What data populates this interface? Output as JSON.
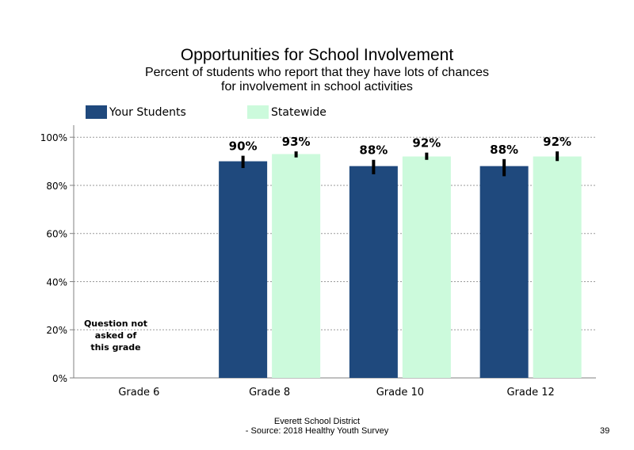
{
  "chart_data": {
    "type": "bar",
    "title": "Opportunities  for School Involvement",
    "subtitle": [
      "Percent of students  who report that they have lots of chances",
      "for involvement  in school activities"
    ],
    "categories": [
      "Grade 6",
      "Grade 8",
      "Grade 10",
      "Grade 12"
    ],
    "series": [
      {
        "name": "Your Students",
        "color": "#1f497d",
        "values": [
          null,
          90,
          88,
          88
        ],
        "labels": [
          "",
          "90%",
          "88%",
          "88%"
        ],
        "error": [
          null,
          [
            87.2,
            92.3
          ],
          [
            84.6,
            90.6
          ],
          [
            83.8,
            90.9
          ]
        ]
      },
      {
        "name": "Statewide",
        "color": "#ccfadc",
        "values": [
          null,
          93,
          92,
          92
        ],
        "labels": [
          "",
          "93%",
          "92%",
          "92%"
        ],
        "error": [
          null,
          [
            91.6,
            94.1
          ],
          [
            90.6,
            93.6
          ],
          [
            90.1,
            94.1
          ]
        ]
      }
    ],
    "ylim": [
      0,
      100
    ],
    "yticks": [
      0,
      20,
      40,
      60,
      80,
      100
    ],
    "ytick_labels": [
      "0%",
      "20%",
      "40%",
      "60%",
      "80%",
      "100%"
    ],
    "gridlines": "dotted, y only",
    "legend_position": "top-left",
    "xlabel": "",
    "ylabel": "",
    "annotation": [
      "Question not",
      "asked of",
      "this grade"
    ]
  },
  "footer": {
    "line1": "Everett School District",
    "line2": "- Source: 2018 Healthy  Youth Survey"
  },
  "page_number": "39"
}
